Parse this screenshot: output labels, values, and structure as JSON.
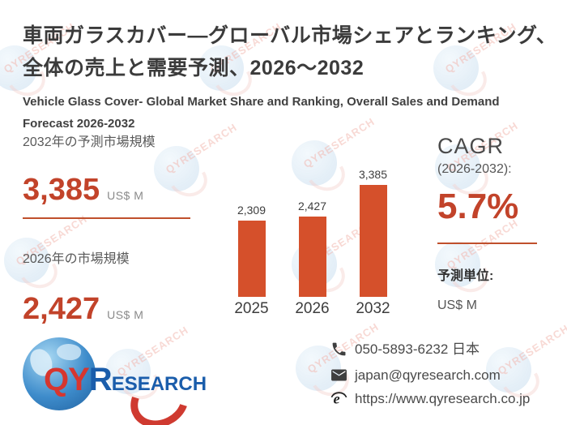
{
  "header": {
    "title_jp_lines": [
      "車両ガラスカバー—グローバル市場シェアとランキング、",
      "全体の売上と需要予測、2026～2032"
    ],
    "subtitle_en": "Vehicle Glass Cover- Global Market Share and Ranking, Overall Sales and Demand Forecast 2026-2032"
  },
  "left_panel": {
    "forecast_label": "2032年の予測市場規模",
    "forecast_value": "3,385",
    "forecast_unit": "US$ M",
    "current_label": "2026年の市場規模",
    "current_value": "2,427",
    "current_unit": "US$ M"
  },
  "chart_data": {
    "type": "bar",
    "categories": [
      "2025",
      "2026",
      "2032"
    ],
    "values": [
      2309,
      2427,
      3385
    ],
    "value_labels": [
      "2,309",
      "2,427",
      "3,385"
    ],
    "unit": "US$ M",
    "bar_color": "#d5502b",
    "ylim": [
      0,
      3600
    ],
    "grid": false,
    "legend": false
  },
  "cagr_panel": {
    "title": "CAGR",
    "range": "(2026-2032):",
    "value": "5.7%",
    "unit_label": "予測単位:",
    "unit_value": "US$ M"
  },
  "footer": {
    "logo": {
      "part1": "QY",
      "part2": "R",
      "part3": "ESEARCH"
    },
    "contacts": [
      {
        "icon": "phone-icon",
        "text": "050-5893-6232 日本"
      },
      {
        "icon": "email-icon",
        "text": "japan@qyresearch.com"
      },
      {
        "icon": "globe-icon",
        "text": "https://www.qyresearch.co.jp"
      }
    ]
  },
  "watermark": {
    "text": "QYRESEARCH"
  },
  "colors": {
    "accent": "#c2432a",
    "bar": "#d5502b",
    "divider": "#c0502c",
    "title": "#3b3b3b",
    "logo_red": "#d6362f",
    "logo_blue": "#1a5dab"
  }
}
